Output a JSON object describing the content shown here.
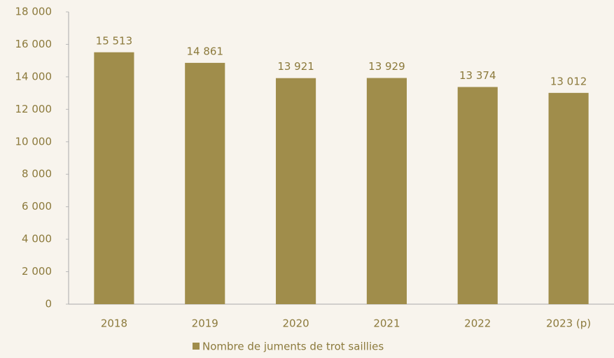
{
  "chart_data": {
    "type": "bar",
    "categories": [
      "2018",
      "2019",
      "2020",
      "2021",
      "2022",
      "2023 (p)"
    ],
    "series": [
      {
        "name": "Nombre de juments de trot saillies",
        "color": "#a08d4b",
        "values": [
          15513,
          14861,
          13921,
          13929,
          13374,
          13012
        ],
        "value_labels": [
          "15 513",
          "14 861",
          "13 921",
          "13 929",
          "13 374",
          "13 012"
        ]
      }
    ],
    "ylim": [
      0,
      18000
    ],
    "yticks": [
      0,
      {
        "value": 2000,
        "label": "2 000"
      },
      {
        "value": 4000,
        "label": "4 000"
      },
      {
        "value": 6000,
        "label": "6 000"
      },
      {
        "value": 8000,
        "label": "8 000"
      },
      {
        "value": 10000,
        "label": "10 000"
      },
      {
        "value": 12000,
        "label": "12 000"
      },
      {
        "value": 14000,
        "label": "14 000"
      },
      {
        "value": 16000,
        "label": "16 000"
      },
      {
        "value": 18000,
        "label": "18 000"
      }
    ],
    "legend": "bottom"
  }
}
